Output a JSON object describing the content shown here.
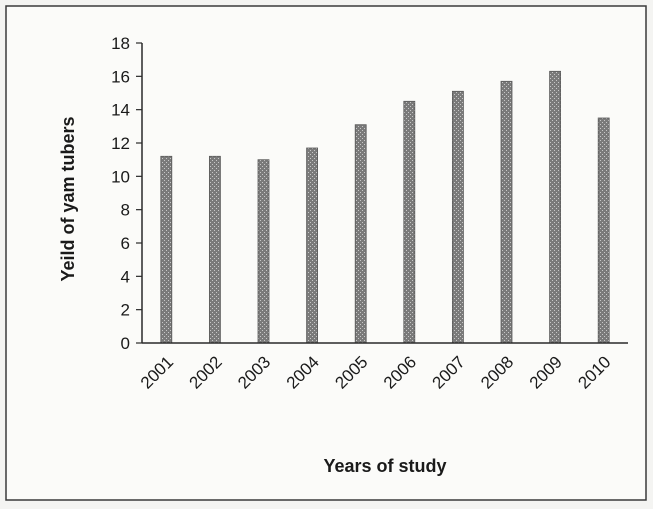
{
  "chart_data": {
    "type": "bar",
    "title": "",
    "xlabel": "Years of study",
    "ylabel": "Yeild of yam tubers",
    "categories": [
      "2001",
      "2002",
      "2003",
      "2004",
      "2005",
      "2006",
      "2007",
      "2008",
      "2009",
      "2010"
    ],
    "values": [
      11.2,
      11.2,
      11.0,
      11.7,
      13.1,
      14.5,
      15.1,
      15.7,
      16.3,
      13.5
    ],
    "ylim": [
      0,
      18
    ],
    "yticks": [
      0,
      2,
      4,
      6,
      8,
      10,
      12,
      14,
      16,
      18
    ],
    "grid": false,
    "legend": "none",
    "bar_color": "#7a7a7a"
  }
}
